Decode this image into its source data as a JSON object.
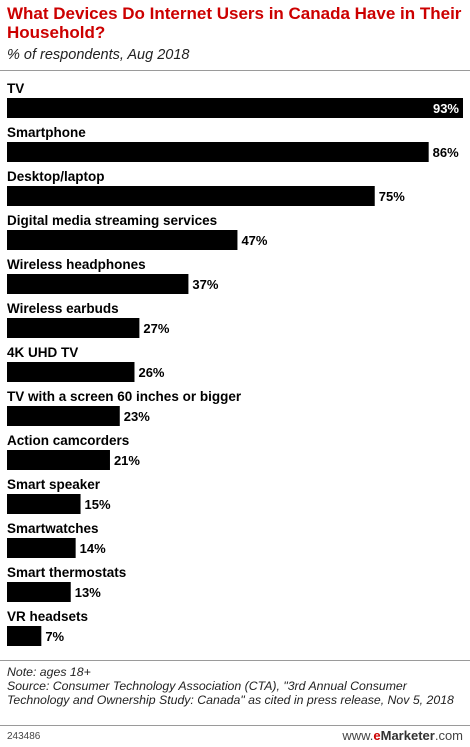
{
  "header": {
    "title": "What Devices Do Internet Users in Canada Have in Their Household?",
    "subtitle": "% of respondents, Aug 2018"
  },
  "chart_data": {
    "type": "bar",
    "orientation": "horizontal",
    "categories": [
      "TV",
      "Smartphone",
      "Desktop/laptop",
      "Digital media streaming services",
      "Wireless headphones",
      "Wireless earbuds",
      "4K UHD TV",
      "TV with a screen 60 inches or bigger",
      "Action camcorders",
      "Smart speaker",
      "Smartwatches",
      "Smart thermostats",
      "VR headsets"
    ],
    "values": [
      93,
      86,
      75,
      47,
      37,
      27,
      26,
      23,
      21,
      15,
      14,
      13,
      7
    ],
    "value_labels": [
      "93%",
      "86%",
      "75%",
      "47%",
      "37%",
      "27%",
      "26%",
      "23%",
      "21%",
      "15%",
      "14%",
      "13%",
      "7%"
    ],
    "bar_color": "#000000",
    "title": "What Devices Do Internet Users in Canada Have in Their Household?",
    "subtitle": "% of respondents, Aug 2018",
    "xlim": [
      0,
      93
    ],
    "grid": false,
    "legend": "none"
  },
  "footer": {
    "note": "Note: ages 18+",
    "source": "Source: Consumer Technology Association (CTA), \"3rd Annual Consumer Technology and Ownership Study: Canada\" as cited in press release, Nov 5, 2018",
    "chart_id": "243486",
    "website_prefix": "www.",
    "brand_e": "e",
    "brand_name": "Marketer",
    "brand_suffix": ".com"
  },
  "colors": {
    "title": "#cc0000",
    "bar": "#000000",
    "brand_accent": "#cc0000"
  }
}
